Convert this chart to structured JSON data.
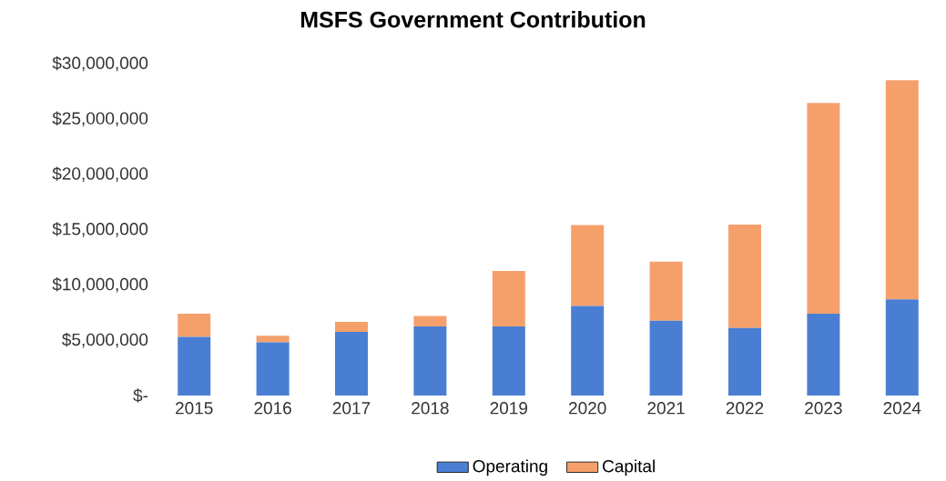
{
  "chart_data": {
    "type": "bar",
    "title": "MSFS Government Contribution",
    "stacked": true,
    "categories": [
      "2015",
      "2016",
      "2017",
      "2018",
      "2019",
      "2020",
      "2021",
      "2022",
      "2023",
      "2024"
    ],
    "series": [
      {
        "name": "Operating",
        "color": "#4a7ed3",
        "values": [
          5300000,
          4800000,
          5750000,
          6250000,
          6250000,
          8100000,
          6750000,
          6100000,
          7400000,
          8700000
        ]
      },
      {
        "name": "Capital",
        "color": "#f5a06b",
        "values": [
          2100000,
          600000,
          900000,
          950000,
          5000000,
          7300000,
          5350000,
          9350000,
          19050000,
          19800000
        ]
      }
    ],
    "ylim": [
      0,
      30000000
    ],
    "yticks": [
      {
        "value": 0,
        "label": "$-"
      },
      {
        "value": 5000000,
        "label": "$5,000,000"
      },
      {
        "value": 10000000,
        "label": "$10,000,000"
      },
      {
        "value": 15000000,
        "label": "$15,000,000"
      },
      {
        "value": 20000000,
        "label": "$20,000,000"
      },
      {
        "value": 25000000,
        "label": "$25,000,000"
      },
      {
        "value": 30000000,
        "label": "$30,000,000"
      }
    ],
    "grid": false,
    "legend": "bottom"
  }
}
